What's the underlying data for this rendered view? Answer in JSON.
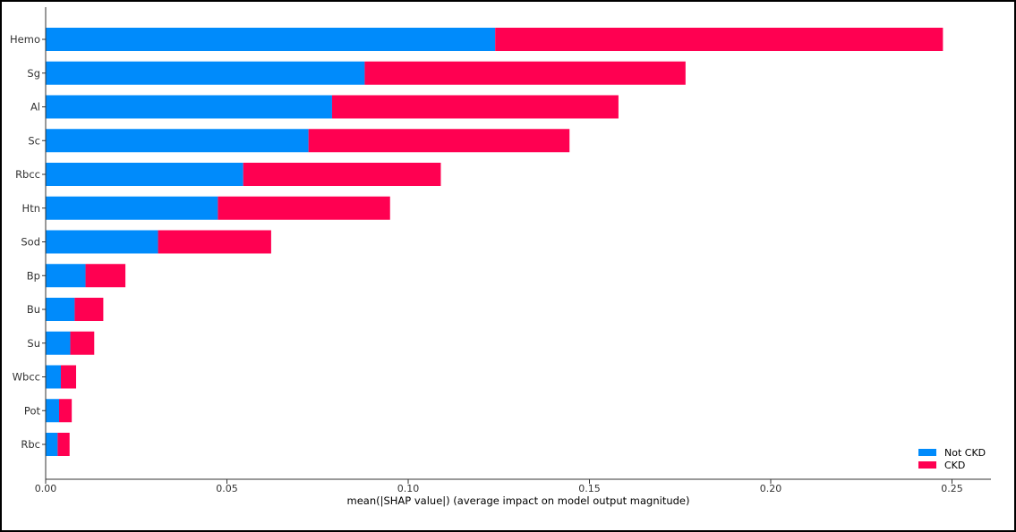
{
  "chart_data": {
    "type": "bar",
    "orientation": "horizontal",
    "stacked": true,
    "title": "",
    "xlabel": "mean(|SHAP value|) (average impact on model output magnitude)",
    "ylabel": "",
    "xlim": [
      0,
      0.26
    ],
    "xticks": [
      0.0,
      0.05,
      0.1,
      0.15,
      0.2,
      0.25
    ],
    "xtick_labels": [
      "0.00",
      "0.05",
      "0.10",
      "0.15",
      "0.20",
      "0.25"
    ],
    "grid": false,
    "legend_position": "bottom-right",
    "categories": [
      "Hemo",
      "Sg",
      "Al",
      "Sc",
      "Rbcc",
      "Htn",
      "Sod",
      "Bp",
      "Bu",
      "Su",
      "Wbcc",
      "Pot",
      "Rbc"
    ],
    "series": [
      {
        "name": "Not CKD",
        "color": "#008bfb",
        "values": [
          0.124,
          0.088,
          0.079,
          0.0725,
          0.0545,
          0.0475,
          0.031,
          0.011,
          0.008,
          0.0068,
          0.0042,
          0.0037,
          0.0033
        ]
      },
      {
        "name": "CKD",
        "color": "#ff0051",
        "values": [
          0.1235,
          0.0885,
          0.079,
          0.072,
          0.0545,
          0.0475,
          0.0312,
          0.011,
          0.0079,
          0.0066,
          0.0042,
          0.0035,
          0.0033
        ]
      }
    ]
  }
}
